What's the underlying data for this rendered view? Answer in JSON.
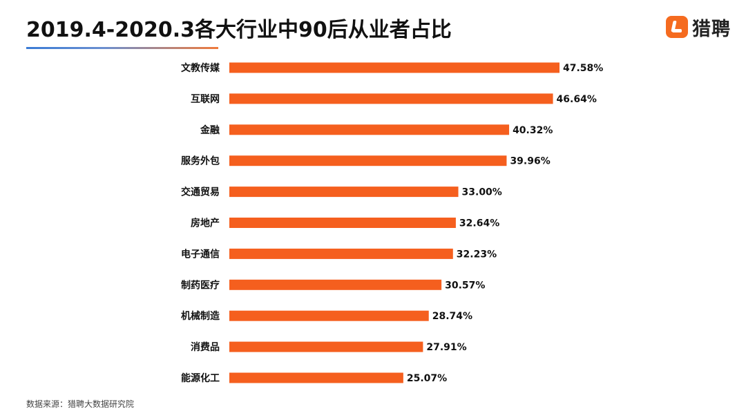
{
  "header": {
    "title": "2019.4-2020.3各大行业中90后从业者占比",
    "logo_text": "猎聘",
    "logo_icon": "liepin-logo-icon"
  },
  "colors": {
    "bar": "#f55f1e",
    "logo": "#f56b1f"
  },
  "chart_data": {
    "type": "bar",
    "orientation": "horizontal",
    "title": "2019.4-2020.3各大行业中90后从业者占比",
    "categories": [
      "文教传媒",
      "互联网",
      "金融",
      "服务外包",
      "交通贸易",
      "房地产",
      "电子通信",
      "制药医疗",
      "机械制造",
      "消费品",
      "能源化工"
    ],
    "values": [
      47.58,
      46.64,
      40.32,
      39.96,
      33.0,
      32.64,
      32.23,
      30.57,
      28.74,
      27.91,
      25.07
    ],
    "value_labels": [
      "47.58%",
      "46.64%",
      "40.32%",
      "39.96%",
      "33.00%",
      "32.64%",
      "32.23%",
      "30.57%",
      "28.74%",
      "27.91%",
      "25.07%"
    ],
    "unit": "%",
    "xlim": [
      0,
      50
    ],
    "grid": false,
    "legend": "none"
  },
  "footer": {
    "source": "数据来源：猎聘大数据研究院"
  }
}
